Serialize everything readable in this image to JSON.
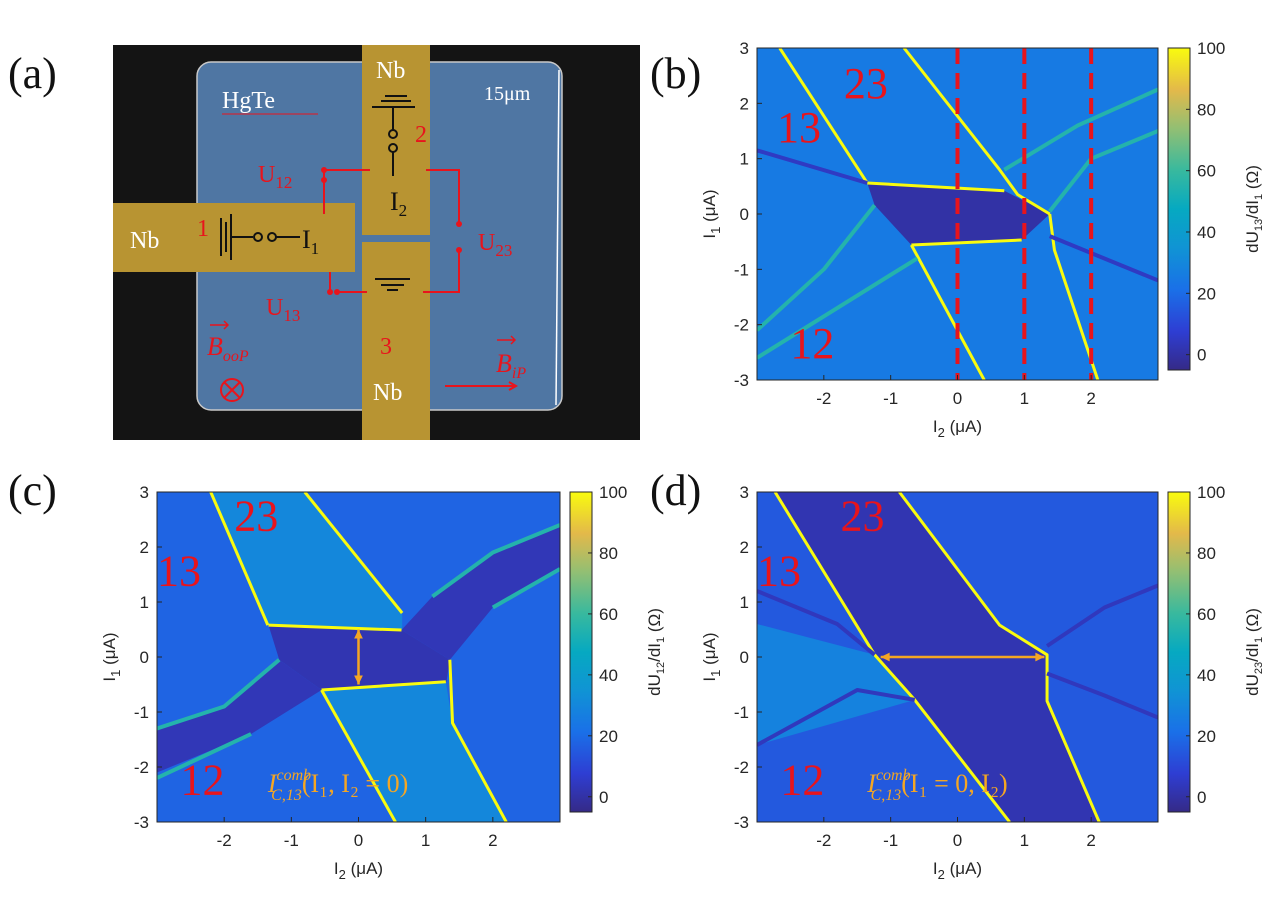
{
  "panel_a": {
    "label": "(a)",
    "material": "HgTe",
    "scale": "15μm",
    "contact_top": "Nb",
    "contact_left": "Nb",
    "contact_bottom": "Nb",
    "terminal_1": "1",
    "terminal_2": "2",
    "terminal_3": "3",
    "current_1": {
      "main": "I",
      "sub": "1"
    },
    "current_2": {
      "main": "I",
      "sub": "2"
    },
    "voltage_12": {
      "main": "U",
      "sub": "12"
    },
    "voltage_13": {
      "main": "U",
      "sub": "13"
    },
    "voltage_23": {
      "main": "U",
      "sub": "23"
    },
    "field_oop": {
      "main": "B",
      "sub": "ooP"
    },
    "field_ip": {
      "main": "B",
      "sub": "iP"
    },
    "colors": {
      "background": "#111111",
      "hgte": "#4f76a3",
      "nb": "#b89432",
      "annotation": "#e8141c"
    }
  },
  "chart_data": [
    {
      "id": "b",
      "type": "heatmap",
      "panel_label": "(b)",
      "xlabel": {
        "main": "I",
        "sub": "2",
        "rest": " (μA)"
      },
      "ylabel": {
        "main": "I",
        "sub": "1",
        "rest": " (μA)"
      },
      "xlim": [
        -3,
        3
      ],
      "ylim": [
        -3,
        3
      ],
      "xticks": [
        "-2",
        "-1",
        "0",
        "1",
        "2"
      ],
      "xtick_values": [
        -2,
        -1,
        0,
        1,
        2
      ],
      "yticks": [
        "3",
        "2",
        "1",
        "0",
        "-1",
        "-2",
        "-3"
      ],
      "ytick_values": [
        3,
        2,
        1,
        0,
        -1,
        -2,
        -3
      ],
      "colorbar": {
        "label": {
          "pre": "dU",
          "sub1": "13",
          "mid": "/dI",
          "sub2": "1",
          "rest": " (Ω)"
        },
        "range": [
          -5,
          100
        ],
        "ticks": [
          "0",
          "20",
          "40",
          "60",
          "80",
          "100"
        ],
        "tick_values": [
          0,
          20,
          40,
          60,
          80,
          100
        ]
      },
      "background_value": 25,
      "regions": [
        {
          "name": "superconducting-pocket",
          "value": 0,
          "points": [
            [
              -1.35,
              0.56
            ],
            [
              0.7,
              0.42
            ],
            [
              1.38,
              0
            ],
            [
              0.96,
              -0.47
            ],
            [
              -0.69,
              -0.56
            ],
            [
              -1.24,
              0.16
            ]
          ]
        }
      ],
      "lines": [
        {
          "value": 100,
          "points": [
            [
              -2.66,
              3
            ],
            [
              -1.35,
              0.56
            ]
          ]
        },
        {
          "value": 100,
          "points": [
            [
              -0.8,
              3
            ],
            [
              0.63,
              0.8
            ],
            [
              0.9,
              0.35
            ],
            [
              1.38,
              0
            ]
          ]
        },
        {
          "value": 100,
          "points": [
            [
              -1.35,
              0.56
            ],
            [
              0.7,
              0.42
            ]
          ]
        },
        {
          "value": 100,
          "points": [
            [
              -0.69,
              -0.56
            ],
            [
              0.96,
              -0.47
            ]
          ]
        },
        {
          "value": 100,
          "points": [
            [
              -0.69,
              -0.56
            ],
            [
              0.4,
              -3
            ]
          ]
        },
        {
          "value": 100,
          "points": [
            [
              1.38,
              0
            ],
            [
              1.45,
              -0.65
            ],
            [
              2.1,
              -3
            ]
          ]
        },
        {
          "value": 55,
          "points": [
            [
              -1.24,
              0.16
            ],
            [
              -2,
              -1
            ],
            [
              -3,
              -2.1
            ]
          ]
        },
        {
          "value": 55,
          "points": [
            [
              -0.6,
              -0.8
            ],
            [
              -1.8,
              -1.7
            ],
            [
              -3,
              -2.6
            ]
          ]
        },
        {
          "value": 55,
          "points": [
            [
              0.7,
              0.8
            ],
            [
              1.8,
              1.6
            ],
            [
              3,
              2.25
            ]
          ]
        },
        {
          "value": 55,
          "points": [
            [
              1.38,
              0.05
            ],
            [
              2,
              1
            ],
            [
              3,
              1.5
            ]
          ]
        },
        {
          "value": 5,
          "points": [
            [
              -3,
              1.15
            ],
            [
              -1.35,
              0.56
            ]
          ]
        },
        {
          "value": 5,
          "points": [
            [
              1.38,
              -0.4
            ],
            [
              3,
              -1.2
            ]
          ]
        }
      ],
      "dashed_markers": {
        "color": "#e8141c",
        "x_values": [
          0,
          1,
          2
        ]
      },
      "region_labels": [
        {
          "text": "13",
          "x": -2.7,
          "y": 1.3
        },
        {
          "text": "23",
          "x": -1.7,
          "y": 2.1
        },
        {
          "text": "12",
          "x": -2.5,
          "y": -2.6
        }
      ]
    },
    {
      "id": "c",
      "type": "heatmap",
      "panel_label": "(c)",
      "xlabel": {
        "main": "I",
        "sub": "2",
        "rest": " (μA)"
      },
      "ylabel": {
        "main": "I",
        "sub": "1",
        "rest": " (μA)"
      },
      "xlim": [
        -3,
        3
      ],
      "ylim": [
        -3,
        3
      ],
      "xticks": [
        "-2",
        "-1",
        "0",
        "1",
        "2"
      ],
      "xtick_values": [
        -2,
        -1,
        0,
        1,
        2
      ],
      "yticks": [
        "3",
        "2",
        "1",
        "0",
        "-1",
        "-2",
        "-3"
      ],
      "ytick_values": [
        3,
        2,
        1,
        0,
        -1,
        -2,
        -3
      ],
      "colorbar": {
        "label": {
          "pre": "dU",
          "sub1": "12",
          "mid": "/dI",
          "sub2": "1",
          "rest": " (Ω)"
        },
        "range": [
          -5,
          100
        ],
        "ticks": [
          "0",
          "20",
          "40",
          "60",
          "80",
          "100"
        ],
        "tick_values": [
          0,
          20,
          40,
          60,
          80,
          100
        ]
      },
      "background_value": 18,
      "regions": [
        {
          "name": "region-23",
          "value": 30,
          "points": [
            [
              -2.2,
              3
            ],
            [
              -0.8,
              3
            ],
            [
              0.65,
              0.8
            ],
            [
              0.65,
              0.5
            ],
            [
              -1.35,
              0.58
            ]
          ]
        },
        {
          "name": "region-12",
          "value": 30,
          "points": [
            [
              -0.55,
              -0.6
            ],
            [
              1.3,
              -0.45
            ],
            [
              1.4,
              -1.2
            ],
            [
              2.2,
              -3
            ],
            [
              0.55,
              -3
            ]
          ]
        },
        {
          "name": "superconducting-pocket",
          "value": 2,
          "points": [
            [
              -1.34,
              0.58
            ],
            [
              0.64,
              0.49
            ],
            [
              1.36,
              -0.05
            ],
            [
              1.31,
              -0.45
            ],
            [
              -0.55,
              -0.6
            ],
            [
              -1.18,
              -0.05
            ]
          ]
        },
        {
          "name": "dark-band-lower-left",
          "value": 3,
          "points": [
            [
              -1.18,
              -0.05
            ],
            [
              -0.55,
              -0.6
            ],
            [
              -1.6,
              -1.4
            ],
            [
              -3,
              -2.1
            ],
            [
              -3,
              -1.3
            ],
            [
              -2,
              -0.9
            ]
          ]
        },
        {
          "name": "dark-band-upper-right",
          "value": 3,
          "points": [
            [
              0.64,
              0.49
            ],
            [
              1.36,
              -0.05
            ],
            [
              2,
              0.9
            ],
            [
              3,
              1.6
            ],
            [
              3,
              2.4
            ],
            [
              2,
              1.9
            ],
            [
              1.1,
              1.1
            ]
          ]
        }
      ],
      "lines": [
        {
          "value": 100,
          "points": [
            [
              -2.2,
              3
            ],
            [
              -1.35,
              0.58
            ]
          ]
        },
        {
          "value": 100,
          "points": [
            [
              -0.8,
              3
            ],
            [
              0.65,
              0.8
            ]
          ]
        },
        {
          "value": 100,
          "points": [
            [
              -1.34,
              0.58
            ],
            [
              0.64,
              0.49
            ]
          ]
        },
        {
          "value": 100,
          "points": [
            [
              -0.55,
              -0.6
            ],
            [
              1.3,
              -0.45
            ]
          ]
        },
        {
          "value": 100,
          "points": [
            [
              -0.55,
              -0.6
            ],
            [
              0.55,
              -3
            ]
          ]
        },
        {
          "value": 100,
          "points": [
            [
              1.36,
              -0.05
            ],
            [
              1.4,
              -1.2
            ],
            [
              2.2,
              -3
            ]
          ]
        },
        {
          "value": 55,
          "points": [
            [
              -1.18,
              -0.05
            ],
            [
              -2,
              -0.9
            ],
            [
              -3,
              -1.3
            ]
          ]
        },
        {
          "value": 55,
          "points": [
            [
              -1.6,
              -1.4
            ],
            [
              -3,
              -2.2
            ]
          ]
        },
        {
          "value": 55,
          "points": [
            [
              1.1,
              1.1
            ],
            [
              2,
              1.9
            ],
            [
              3,
              2.4
            ]
          ]
        },
        {
          "value": 55,
          "points": [
            [
              2,
              0.9
            ],
            [
              3,
              1.6
            ]
          ]
        }
      ],
      "arrow": {
        "color": "#f5a623",
        "from": [
          0,
          0.5
        ],
        "to": [
          0,
          -0.5
        ]
      },
      "region_labels": [
        {
          "text": "13",
          "x": -3,
          "y": 1.3
        },
        {
          "text": "23",
          "x": -1.85,
          "y": 2.3
        },
        {
          "text": "12",
          "x": -2.65,
          "y": -2.5
        }
      ],
      "formula": {
        "main": "I",
        "sub": "C,13",
        "sup": "comb",
        "rest": "(I₁, I₂ = 0)",
        "color": "#f5a623",
        "x": -1.35,
        "y": -2.45
      }
    },
    {
      "id": "d",
      "type": "heatmap",
      "panel_label": "(d)",
      "xlabel": {
        "main": "I",
        "sub": "2",
        "rest": " (μA)"
      },
      "ylabel": {
        "main": "I",
        "sub": "1",
        "rest": " (μA)"
      },
      "xlim": [
        -3,
        3
      ],
      "ylim": [
        -3,
        3
      ],
      "xticks": [
        "-2",
        "-1",
        "0",
        "1",
        "2"
      ],
      "xtick_values": [
        -2,
        -1,
        0,
        1,
        2
      ],
      "yticks": [
        "3",
        "2",
        "1",
        "0",
        "-1",
        "-2",
        "-3"
      ],
      "ytick_values": [
        3,
        2,
        1,
        0,
        -1,
        -2,
        -3
      ],
      "colorbar": {
        "label": {
          "pre": "dU",
          "sub1": "23",
          "mid": "/dI",
          "sub2": "1",
          "rest": " (Ω)"
        },
        "range": [
          -5,
          100
        ],
        "ticks": [
          "0",
          "20",
          "40",
          "60",
          "80",
          "100"
        ],
        "tick_values": [
          0,
          20,
          40,
          60,
          80,
          100
        ]
      },
      "background_value": 15,
      "regions": [
        {
          "name": "region-13-light",
          "value": 28,
          "points": [
            [
              -3,
              0.6
            ],
            [
              -1.24,
              0.04
            ],
            [
              -0.64,
              -0.78
            ],
            [
              -3,
              -1.6
            ]
          ]
        },
        {
          "name": "region-23-dark",
          "value": 2,
          "points": [
            [
              -2.73,
              3
            ],
            [
              -0.87,
              3
            ],
            [
              0.63,
              0.58
            ],
            [
              1.34,
              0.04
            ],
            [
              1.34,
              -0.8
            ],
            [
              2.12,
              -3
            ],
            [
              0.78,
              -3
            ],
            [
              -0.64,
              -0.78
            ],
            [
              -1.24,
              0.04
            ]
          ]
        }
      ],
      "lines": [
        {
          "value": 100,
          "points": [
            [
              -2.73,
              3
            ],
            [
              -1.24,
              0.04
            ],
            [
              -0.64,
              -0.78
            ],
            [
              0.78,
              -3
            ]
          ]
        },
        {
          "value": 100,
          "points": [
            [
              -0.87,
              3
            ],
            [
              0.63,
              0.58
            ],
            [
              1.34,
              0.04
            ],
            [
              1.34,
              -0.8
            ],
            [
              2.12,
              -3
            ]
          ]
        },
        {
          "value": 4,
          "points": [
            [
              -3,
              -1.6
            ],
            [
              -1.5,
              -0.6
            ],
            [
              -0.64,
              -0.78
            ]
          ]
        },
        {
          "value": 4,
          "points": [
            [
              1.34,
              0.2
            ],
            [
              2.2,
              0.9
            ],
            [
              3,
              1.3
            ]
          ]
        },
        {
          "value": 4,
          "points": [
            [
              1.34,
              -0.3
            ],
            [
              2.2,
              -0.7
            ],
            [
              3,
              -1.1
            ]
          ]
        },
        {
          "value": 4,
          "points": [
            [
              -3,
              1.2
            ],
            [
              -1.8,
              0.6
            ],
            [
              -1.24,
              0.04
            ]
          ]
        }
      ],
      "arrow": {
        "color": "#f5a623",
        "from": [
          -1.15,
          0
        ],
        "to": [
          1.3,
          0
        ]
      },
      "region_labels": [
        {
          "text": "13",
          "x": -3,
          "y": 1.3
        },
        {
          "text": "23",
          "x": -1.75,
          "y": 2.3
        },
        {
          "text": "12",
          "x": -2.65,
          "y": -2.5
        }
      ],
      "formula": {
        "main": "I",
        "sub": "C,13",
        "sup": "comb",
        "rest": "(I₁ = 0, I₂)",
        "color": "#f5a623",
        "x": -1.35,
        "y": -2.45
      }
    }
  ]
}
